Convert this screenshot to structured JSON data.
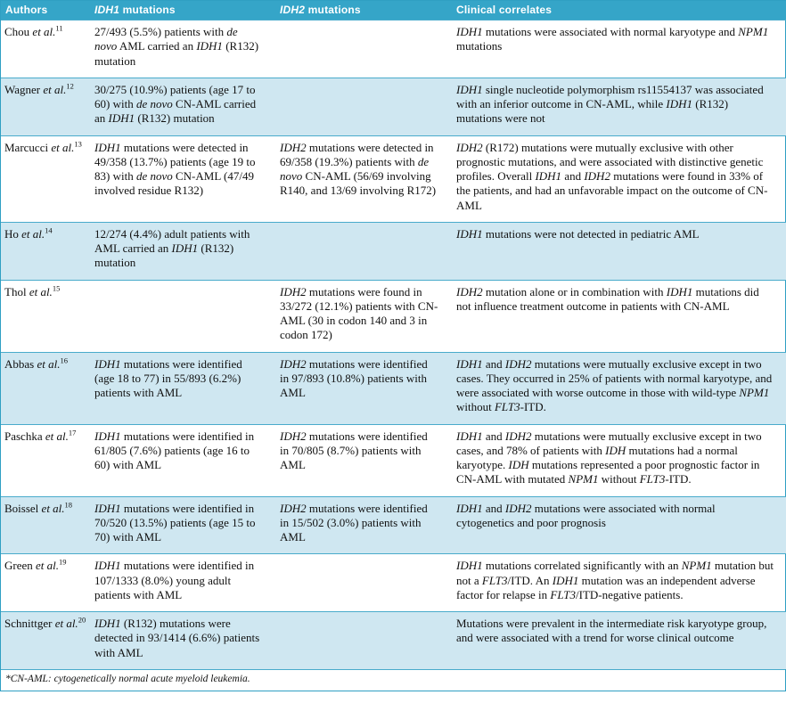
{
  "colors": {
    "header_bg": "#35a5c8",
    "header_text": "#ffffff",
    "shaded_row_bg": "#cfe7f1",
    "row_divider": "#49abcb",
    "body_text": "#101010"
  },
  "table": {
    "columns": [
      "Authors",
      "*IDH1* mutations",
      "*IDH2* mutations",
      "Clinical correlates"
    ],
    "rows": [
      {
        "author": "Chou *et al.*^11^",
        "idh1": "27/493 (5.5%) patients with *de novo* AML carried an *IDH1* (R132) mutation",
        "idh2": "",
        "clinical": "*IDH1* mutations were associated with normal karyotype and *NPM1* mutations"
      },
      {
        "author": "Wagner *et al.*^12^",
        "idh1": "30/275 (10.9%) patients (age 17 to 60) with *de novo* CN-AML carried an *IDH1* (R132) mutation",
        "idh2": "",
        "clinical": "*IDH1* single nucleotide polymorphism rs11554137 was associated with an inferior outcome in CN-AML, while *IDH1* (R132) mutations were not"
      },
      {
        "author": "Marcucci *et al.*^13^",
        "idh1": "*IDH1* mutations were detected in 49/358 (13.7%) patients (age 19 to 83) with *de novo* CN-AML (47/49 involved residue R132)",
        "idh2": "*IDH2* mutations were detected in 69/358 (19.3%) patients with *de novo* CN-AML (56/69 involving R140, and 13/69 involving R172)",
        "clinical": "*IDH2* (R172) mutations were mutually exclusive with other prognostic mutations, and were associated with distinctive genetic profiles. Overall *IDH1* and *IDH2* mutations were found in 33% of the patients, and had an unfavorable impact on the outcome of CN-AML"
      },
      {
        "author": "Ho *et al.*^14^",
        "idh1": "12/274 (4.4%) adult patients with AML carried an *IDH1* (R132) mutation",
        "idh2": "",
        "clinical": "*IDH1* mutations were not detected in pediatric AML"
      },
      {
        "author": "Thol *et al.*^15^",
        "idh1": "",
        "idh2": "*IDH2* mutations were found in 33/272 (12.1%) patients with CN-AML (30 in codon 140 and 3 in codon 172)",
        "clinical": "*IDH2* mutation alone or in combination with *IDH1* mutations did not influence treatment outcome in patients with CN-AML"
      },
      {
        "author": "Abbas *et al.*^16^",
        "idh1": "*IDH1* mutations were identified (age 18 to 77) in 55/893 (6.2%) patients with AML",
        "idh2": "*IDH2* mutations were identified in 97/893 (10.8%) patients with AML",
        "clinical": "*IDH1* and *IDH2* mutations were mutually exclusive except in two cases. They occurred in 25% of patients with normal karyotype, and were associated with worse outcome in those with wild-type *NPM1* without *FLT3*-ITD."
      },
      {
        "author": "Paschka *et al.*^17^",
        "idh1": "*IDH1* mutations were identified in 61/805 (7.6%) patients (age 16 to 60) with AML",
        "idh2": "*IDH2* mutations were identified in 70/805 (8.7%) patients with AML",
        "clinical": "*IDH1* and *IDH2* mutations were mutually exclusive except in two cases, and 78% of patients with *IDH* mutations had a normal karyotype. *IDH* mutations represented a poor prognostic factor in CN-AML with mutated *NPM1* without *FLT3*-ITD."
      },
      {
        "author": "Boissel *et al.*^18^",
        "idh1": "*IDH1* mutations were identified in 70/520 (13.5%) patients (age 15 to 70) with AML",
        "idh2": "*IDH2* mutations were identified in 15/502 (3.0%) patients with AML",
        "clinical": "*IDH1* and *IDH2* mutations were associated with normal cytogenetics and poor prognosis"
      },
      {
        "author": "Green *et al.*^19^",
        "idh1": "*IDH1* mutations were identified in 107/1333 (8.0%) young adult patients with AML",
        "idh2": "",
        "clinical": "*IDH1* mutations correlated significantly with an *NPM1* mutation but not a *FLT3*/ITD. An *IDH1* mutation was an independent adverse factor for relapse in *FLT3*/ITD-negative patients."
      },
      {
        "author": "Schnittger *et al.*^20^",
        "idh1": "*IDH1* (R132) mutations were detected in 93/1414 (6.6%) patients with AML",
        "idh2": "",
        "clinical": "Mutations were prevalent in the intermediate risk karyotype group, and were associated with a trend for worse clinical outcome"
      }
    ]
  },
  "footnote": "*CN-AML: cytogenetically normal acute myeloid leukemia."
}
